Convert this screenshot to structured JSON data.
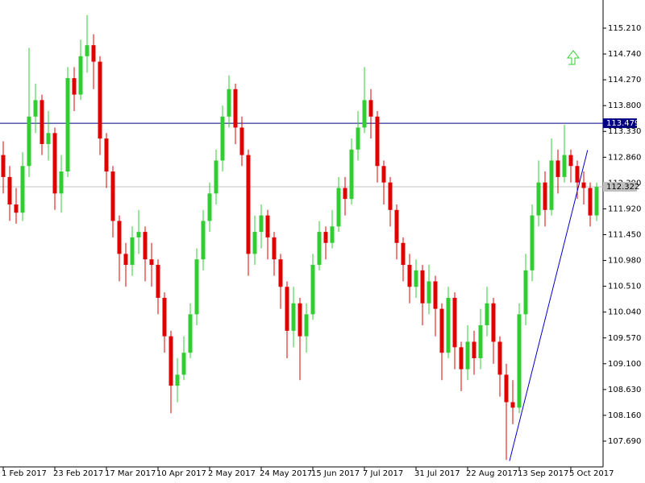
{
  "chart_data": {
    "type": "candlestick",
    "up_color": "#32cd32",
    "down_color": "#e00000",
    "categories": [
      "1 Feb 2017",
      null,
      null,
      null,
      null,
      null,
      null,
      null,
      "23 Feb 2017",
      null,
      null,
      null,
      null,
      null,
      null,
      null,
      "17 Mar 2017",
      null,
      null,
      null,
      null,
      null,
      null,
      null,
      "10 Apr 2017",
      null,
      null,
      null,
      null,
      null,
      null,
      null,
      "2 May 2017",
      null,
      null,
      null,
      null,
      null,
      null,
      null,
      "24 May 2017",
      null,
      null,
      null,
      null,
      null,
      null,
      null,
      "15 Jun 2017",
      null,
      null,
      null,
      null,
      null,
      null,
      null,
      "7 Jul 2017",
      null,
      null,
      null,
      null,
      null,
      null,
      null,
      "31 Jul 2017",
      null,
      null,
      null,
      null,
      null,
      null,
      null,
      "22 Aug 2017",
      null,
      null,
      null,
      null,
      null,
      null,
      null,
      "13 Sep 2017",
      null,
      null,
      null,
      null,
      null,
      null,
      null,
      "5 Oct 2017",
      null,
      null,
      null,
      null
    ],
    "open": [
      112.9,
      112.5,
      112.0,
      111.85,
      112.7,
      113.6,
      113.9,
      113.1,
      113.3,
      112.2,
      112.6,
      114.3,
      114.0,
      114.7,
      114.9,
      114.6,
      113.2,
      112.6,
      111.7,
      111.1,
      110.9,
      111.4,
      111.5,
      111.0,
      110.9,
      110.3,
      109.6,
      108.7,
      108.9,
      109.3,
      110.0,
      111.0,
      111.7,
      112.2,
      112.8,
      113.6,
      114.1,
      113.4,
      112.9,
      111.1,
      111.5,
      111.8,
      111.4,
      111.0,
      110.5,
      109.7,
      110.2,
      109.6,
      110.0,
      110.9,
      111.5,
      111.3,
      111.6,
      112.3,
      112.1,
      113.0,
      113.4,
      113.9,
      113.6,
      112.7,
      112.4,
      111.9,
      111.3,
      110.9,
      110.5,
      110.8,
      110.2,
      110.6,
      110.1,
      109.3,
      110.3,
      109.4,
      109.0,
      109.5,
      109.2,
      109.8,
      110.2,
      109.5,
      108.9,
      108.4,
      108.3,
      110.0,
      110.8,
      111.8,
      112.4,
      111.9,
      112.8,
      112.5,
      112.9,
      112.7,
      112.4,
      112.3,
      111.8
    ],
    "high": [
      113.15,
      112.7,
      112.3,
      112.95,
      114.85,
      114.2,
      114.0,
      113.7,
      113.4,
      112.9,
      114.5,
      114.5,
      115.0,
      115.45,
      115.1,
      114.7,
      113.3,
      112.7,
      111.8,
      111.3,
      111.6,
      111.9,
      111.6,
      111.3,
      111.0,
      110.4,
      109.7,
      109.2,
      109.6,
      110.2,
      111.2,
      111.9,
      112.4,
      113.0,
      113.8,
      114.35,
      114.2,
      113.6,
      113.0,
      111.8,
      112.0,
      111.9,
      111.5,
      111.1,
      110.6,
      110.5,
      110.3,
      110.2,
      111.1,
      111.7,
      111.6,
      111.9,
      112.5,
      112.5,
      113.2,
      113.7,
      114.5,
      114.1,
      113.7,
      112.8,
      112.5,
      112.0,
      111.4,
      111.1,
      111.0,
      110.9,
      110.9,
      110.7,
      110.2,
      110.5,
      110.4,
      109.5,
      109.8,
      109.7,
      110.1,
      110.5,
      110.3,
      109.6,
      109.1,
      108.8,
      110.2,
      111.1,
      112.0,
      112.8,
      112.6,
      113.2,
      113.0,
      113.45,
      113.0,
      112.8,
      112.6,
      112.4,
      112.4
    ],
    "low": [
      112.2,
      111.7,
      111.65,
      111.7,
      112.5,
      113.3,
      112.9,
      112.8,
      111.9,
      111.85,
      112.5,
      113.7,
      113.9,
      114.4,
      114.1,
      112.9,
      112.3,
      111.4,
      110.6,
      110.5,
      110.7,
      111.1,
      110.6,
      110.5,
      110.0,
      109.3,
      108.2,
      108.4,
      108.8,
      109.2,
      109.8,
      110.8,
      111.5,
      112.0,
      112.6,
      113.4,
      113.1,
      112.7,
      110.7,
      110.9,
      111.2,
      111.0,
      110.7,
      110.1,
      109.2,
      109.4,
      108.8,
      109.3,
      109.9,
      110.8,
      111.0,
      111.2,
      111.5,
      111.8,
      112.0,
      112.8,
      113.3,
      113.2,
      112.4,
      112.0,
      111.6,
      111.0,
      110.6,
      110.2,
      110.3,
      109.8,
      110.0,
      109.6,
      108.8,
      109.2,
      109.0,
      108.6,
      108.8,
      108.9,
      109.0,
      109.6,
      109.1,
      108.5,
      107.35,
      108.0,
      108.2,
      109.8,
      110.6,
      111.6,
      111.6,
      111.8,
      112.2,
      112.4,
      112.4,
      112.1,
      112.0,
      111.6,
      111.7
    ],
    "close": [
      112.5,
      112.0,
      111.85,
      112.7,
      113.6,
      113.9,
      113.1,
      113.3,
      112.2,
      112.6,
      114.3,
      114.0,
      114.7,
      114.9,
      114.6,
      113.2,
      112.6,
      111.7,
      111.1,
      110.9,
      111.4,
      111.5,
      111.0,
      110.9,
      110.3,
      109.6,
      108.7,
      108.9,
      109.3,
      110.0,
      111.0,
      111.7,
      112.2,
      112.8,
      113.6,
      114.1,
      113.4,
      112.9,
      111.1,
      111.5,
      111.8,
      111.4,
      111.0,
      110.5,
      109.7,
      110.2,
      109.6,
      110.0,
      110.9,
      111.5,
      111.3,
      111.6,
      112.3,
      112.1,
      113.0,
      113.4,
      113.9,
      113.6,
      112.7,
      112.4,
      111.9,
      111.3,
      110.9,
      110.5,
      110.8,
      110.2,
      110.6,
      110.1,
      109.3,
      110.3,
      109.4,
      109.0,
      109.5,
      109.2,
      109.8,
      110.2,
      109.5,
      108.9,
      108.4,
      108.3,
      110.0,
      110.8,
      111.8,
      112.4,
      111.9,
      112.8,
      112.5,
      112.9,
      112.7,
      112.4,
      112.3,
      111.8,
      112.32
    ],
    "ylim": [
      107.221,
      115.723
    ],
    "yticks": [
      {
        "value": 115.21,
        "label": "115.210"
      },
      {
        "value": 114.74,
        "label": "114.740"
      },
      {
        "value": 114.27,
        "label": "114.270"
      },
      {
        "value": 113.8,
        "label": "113.800"
      },
      {
        "value": 113.33,
        "label": "113.330"
      },
      {
        "value": 112.86,
        "label": "112.860"
      },
      {
        "value": 112.39,
        "label": "112.390"
      },
      {
        "value": 111.92,
        "label": "111.920"
      },
      {
        "value": 111.45,
        "label": "111.450"
      },
      {
        "value": 110.98,
        "label": "110.980"
      },
      {
        "value": 110.51,
        "label": "110.510"
      },
      {
        "value": 110.04,
        "label": "110.040"
      },
      {
        "value": 109.57,
        "label": "109.570"
      },
      {
        "value": 109.1,
        "label": "109.100"
      },
      {
        "value": 108.63,
        "label": "108.630"
      },
      {
        "value": 108.16,
        "label": "108.160"
      },
      {
        "value": 107.69,
        "label": "107.690"
      }
    ],
    "hline": {
      "value": 113.479,
      "label": "113.479",
      "color": "#000080"
    },
    "price_line": {
      "value": 112.322,
      "label": "112.322",
      "color": "#c0c0c0"
    },
    "trendline": {
      "x": [
        78.5,
        90.6
      ],
      "y": [
        107.33,
        112.99
      ],
      "color": "#0000cd"
    }
  }
}
